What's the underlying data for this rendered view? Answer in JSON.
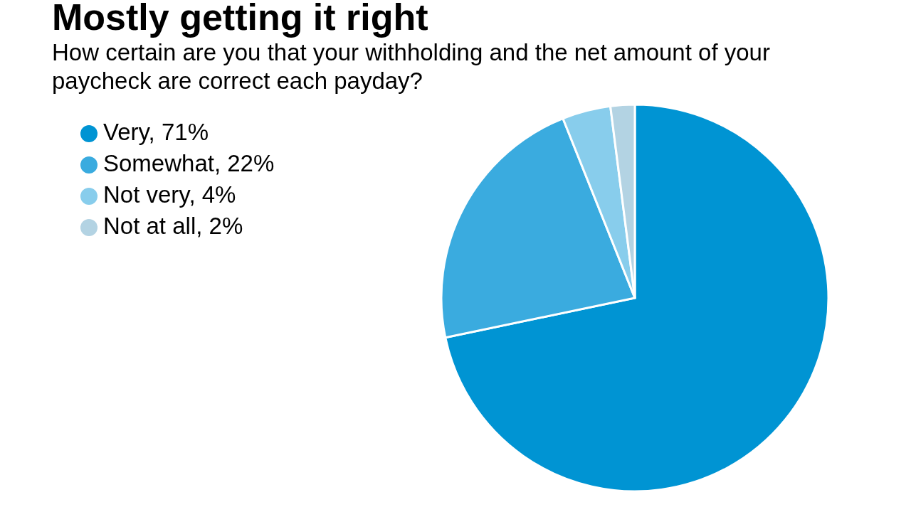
{
  "chart_data": {
    "type": "pie",
    "title": "Mostly getting it right",
    "subtitle": "How certain are you that your withholding and the net amount of your paycheck are correct each payday?",
    "categories": [
      "Very, 71%",
      "Somewhat, 22%",
      "Not very, 4%",
      "Not at all, 2%"
    ],
    "values": [
      71,
      22,
      4,
      2
    ],
    "colors": [
      "#0094d3",
      "#3aabdf",
      "#88cdec",
      "#b3d3e3"
    ],
    "legend": "top left"
  }
}
